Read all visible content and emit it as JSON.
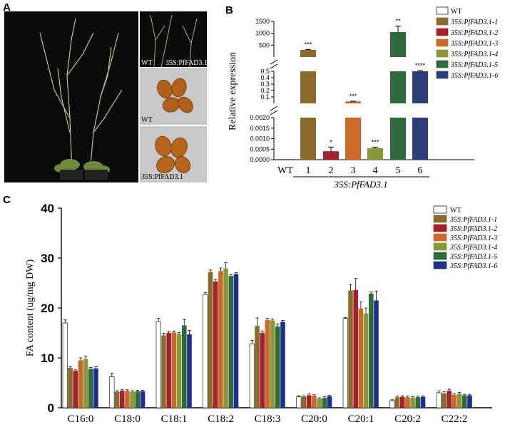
{
  "panels": {
    "a": "A",
    "b": "B",
    "c": "C"
  },
  "photos": {
    "plant_wt_label": "WT",
    "plant_oe_label": "35S:PfFAD3.1",
    "seed_wt_label": "WT",
    "seed_oe_label": "35S:PfFAD3.1"
  },
  "colors": {
    "WT": "#ffffff",
    "35S:PfFAD3.1-1": "#8B6A2E",
    "35S:PfFAD3.1-2": "#A3212B",
    "35S:PfFAD3.1-3": "#C96A2A",
    "35S:PfFAD3.1-4": "#8A9638",
    "35S:PfFAD3.1-5": "#2E6B3A",
    "35S:PfFAD3.1-6": "#2E3E7A",
    "C_6": "#1f2f8f"
  },
  "chart_data": [
    {
      "id": "B",
      "type": "bar",
      "ylabel": "Relative expression",
      "categories": [
        "WT",
        "1",
        "2",
        "3",
        "4",
        "5",
        "6"
      ],
      "group_label": "35S:PfFAD3.1",
      "series_names": [
        "WT",
        "35S:PfFAD3.1-1",
        "35S:PfFAD3.1-2",
        "35S:PfFAD3.1-3",
        "35S:PfFAD3.1-4",
        "35S:PfFAD3.1-5",
        "35S:PfFAD3.1-6"
      ],
      "values": [
        1e-05,
        300,
        0.0004,
        0.03,
        0.00055,
        1050,
        0.5
      ],
      "errors": [
        5e-06,
        20,
        0.0002,
        0.003,
        4e-05,
        250,
        0.01
      ],
      "significance": [
        "",
        "***",
        "*",
        "***",
        "***",
        "**",
        "****"
      ],
      "y_segments": [
        {
          "ylim": [
            0,
            0.002
          ],
          "ticks": [
            "0.0000",
            "0.0005",
            "0.0010",
            "0.0015",
            "0.0020"
          ],
          "tick_values": [
            0,
            0.0005,
            0.001,
            0.0015,
            0.002
          ]
        },
        {
          "ylim": [
            0,
            0.5
          ],
          "ticks": [
            "0.1",
            "0.2",
            "0.3",
            "0.4",
            "0.5"
          ],
          "tick_values": [
            0.1,
            0.2,
            0.3,
            0.4,
            0.5
          ]
        },
        {
          "ylim": [
            0,
            1500
          ],
          "ticks": [
            "500",
            "1000",
            "1500"
          ],
          "tick_values": [
            500,
            1000,
            1500
          ]
        }
      ],
      "legend_placement": "right"
    },
    {
      "id": "C",
      "type": "bar",
      "ylabel": "FA content (ug/mg DW)",
      "ylim": [
        0,
        40
      ],
      "yticks": [
        "0",
        "10",
        "20",
        "30",
        "40"
      ],
      "ytick_values": [
        0,
        10,
        20,
        30,
        40
      ],
      "categories": [
        "C16:0",
        "C18:0",
        "C18:1",
        "C18:2",
        "C18:3",
        "C20:0",
        "C20:1",
        "C20:2",
        "C22:2"
      ],
      "legend_placement": "top-right",
      "series": [
        {
          "name": "WT",
          "values": [
            17.0,
            6.2,
            17.3,
            22.7,
            12.8,
            2.2,
            17.9,
            1.4,
            3.0
          ],
          "errors": [
            0.6,
            0.7,
            0.6,
            0.4,
            0.7,
            0.2,
            0.2,
            0.2,
            0.4
          ]
        },
        {
          "name": "35S:PfFAD3.1-1",
          "values": [
            8.0,
            3.2,
            14.5,
            27.2,
            16.4,
            2.2,
            23.5,
            2.1,
            2.9
          ],
          "errors": [
            0.2,
            0.2,
            0.4,
            0.4,
            1.6,
            0.2,
            1.2,
            0.2,
            0.3
          ]
        },
        {
          "name": "35S:PfFAD3.1-2",
          "values": [
            7.4,
            3.4,
            15.0,
            25.3,
            15.0,
            2.5,
            23.6,
            2.2,
            3.4
          ],
          "errors": [
            0.2,
            0.2,
            0.3,
            0.4,
            0.4,
            0.3,
            2.3,
            0.2,
            0.3
          ]
        },
        {
          "name": "35S:PfFAD3.1-3",
          "values": [
            9.5,
            3.4,
            15.1,
            27.4,
            17.6,
            2.4,
            19.9,
            2.1,
            2.6
          ],
          "errors": [
            0.5,
            0.2,
            0.3,
            0.6,
            0.3,
            0.2,
            1.3,
            0.2,
            0.2
          ]
        },
        {
          "name": "35S:PfFAD3.1-4",
          "values": [
            9.8,
            3.2,
            14.8,
            27.9,
            17.5,
            1.8,
            18.9,
            2.0,
            2.8
          ],
          "errors": [
            0.5,
            0.2,
            0.3,
            1.2,
            0.3,
            0.2,
            1.1,
            0.2,
            0.3
          ]
        },
        {
          "name": "35S:PfFAD3.1-5",
          "values": [
            7.8,
            3.3,
            16.5,
            26.4,
            16.3,
            2.0,
            22.9,
            2.1,
            2.5
          ],
          "errors": [
            0.3,
            0.2,
            1.2,
            0.3,
            0.5,
            0.2,
            0.3,
            0.2,
            0.2
          ]
        },
        {
          "name": "35S:PfFAD3.1-6",
          "values": [
            7.9,
            3.3,
            14.7,
            26.8,
            17.2,
            2.3,
            21.5,
            2.2,
            2.5
          ],
          "errors": [
            0.3,
            0.2,
            0.8,
            0.3,
            0.3,
            0.2,
            1.9,
            0.2,
            0.2
          ]
        }
      ]
    }
  ]
}
